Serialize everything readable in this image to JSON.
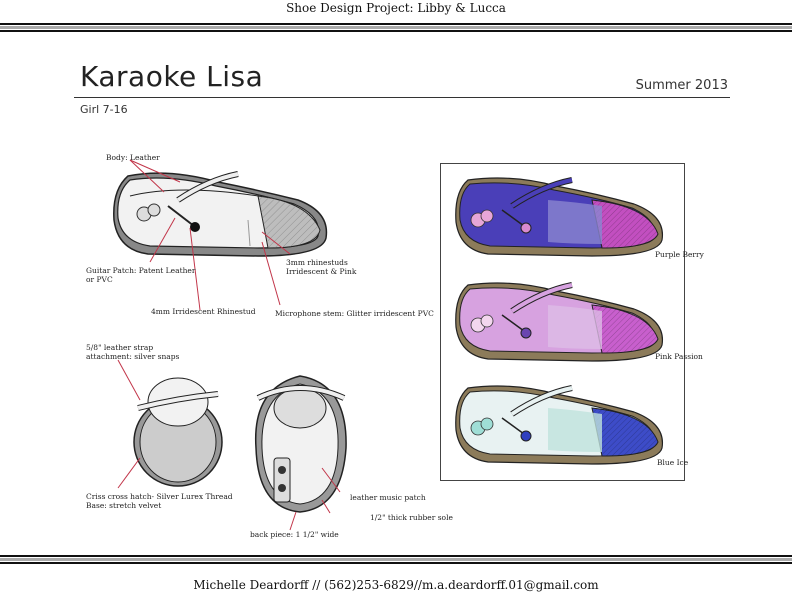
{
  "header": {
    "project": "Shoe Design Project: Libby & Lucca"
  },
  "design": {
    "name": "Karaoke Lisa",
    "season": "Summer 2013",
    "size_range": "Girl 7-16"
  },
  "callouts": {
    "body": "Body: Leather",
    "guitar_patch": "Guitar Patch: Patent Leather\nor PVC",
    "rhinestud_4mm": "4mm Irridescent Rhinestud",
    "rhinestuds_3mm": "3mm rhinestuds\nIrridescent & Pink",
    "microphone_stem": "Microphone stem: Glitter irridescent PVC",
    "strap_attachment": "5/8\" leather strap\nattachment: silver snaps",
    "criss_cross": "Criss cross hatch- Silver Lurex Thread\nBase: stretch velvet",
    "back_piece": "back piece: 1 1/2\" wide",
    "leather_music_patch": "leather music patch",
    "rubber_sole": "1/2\" thick rubber sole"
  },
  "colorways": [
    {
      "name": "Purple Berry",
      "upper": "#4a3fb8",
      "toe": "#c24fc0",
      "mesh": "#8a86d0",
      "flower": "#e7a6d8",
      "stud": "#d98ad0"
    },
    {
      "name": "Pink Passion",
      "upper": "#d7a2e0",
      "toe": "#c85fcd",
      "mesh": "#ddbde6",
      "flower": "#f3d6ee",
      "stud": "#6a45b0"
    },
    {
      "name": "Blue Ice",
      "upper": "#e8f2f2",
      "toe": "#3d4cc8",
      "mesh": "#bfe2dc",
      "flower": "#9fded6",
      "stud": "#3040c0"
    }
  ],
  "footer": {
    "contact": "Michelle Deardorff // (562)253-6829//m.a.deardorff.01@gmail.com"
  }
}
